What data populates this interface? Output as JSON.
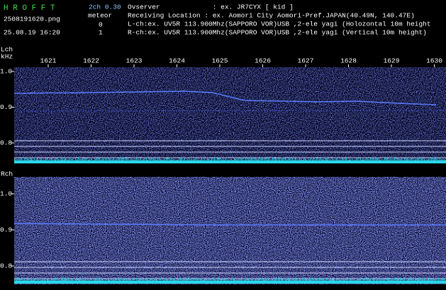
{
  "header": {
    "app_title": "H R O F F T",
    "mode": "2ch 0.30",
    "meteor_label": "meteor",
    "meteor_counts": [
      "0",
      "1"
    ],
    "filename": "2508191620.png",
    "datetime": "25.08.19 16:20",
    "info_lines": [
      "Ovserver             : ex. JR7CYX [ kid ]",
      "Receiving Location : ex. Aomori City Aomori-Pref.JAPAN(40.49N, 140.47E)",
      "L-ch:ex. UV5R 113.900Mhz(SAPPORO VOR)USB ,2-ele yagi (Holozontal 10m height",
      "R-ch:ex. UV5R 113.900Mhz(SAPPORO VOR)USB ,2-ele yagi (Vertical 10m height)"
    ]
  },
  "time_axis": [
    "1621",
    "1622",
    "1623",
    "1624",
    "1625",
    "1626",
    "1627",
    "1628",
    "1629",
    "1630"
  ],
  "channels": [
    {
      "label": "Lch",
      "unit": "kHz",
      "freq_labels": [
        "1.0",
        "0.9",
        "0.8"
      ]
    },
    {
      "label": "Rch",
      "freq_labels": [
        "1.0",
        "0.9",
        "0.8"
      ]
    }
  ]
}
